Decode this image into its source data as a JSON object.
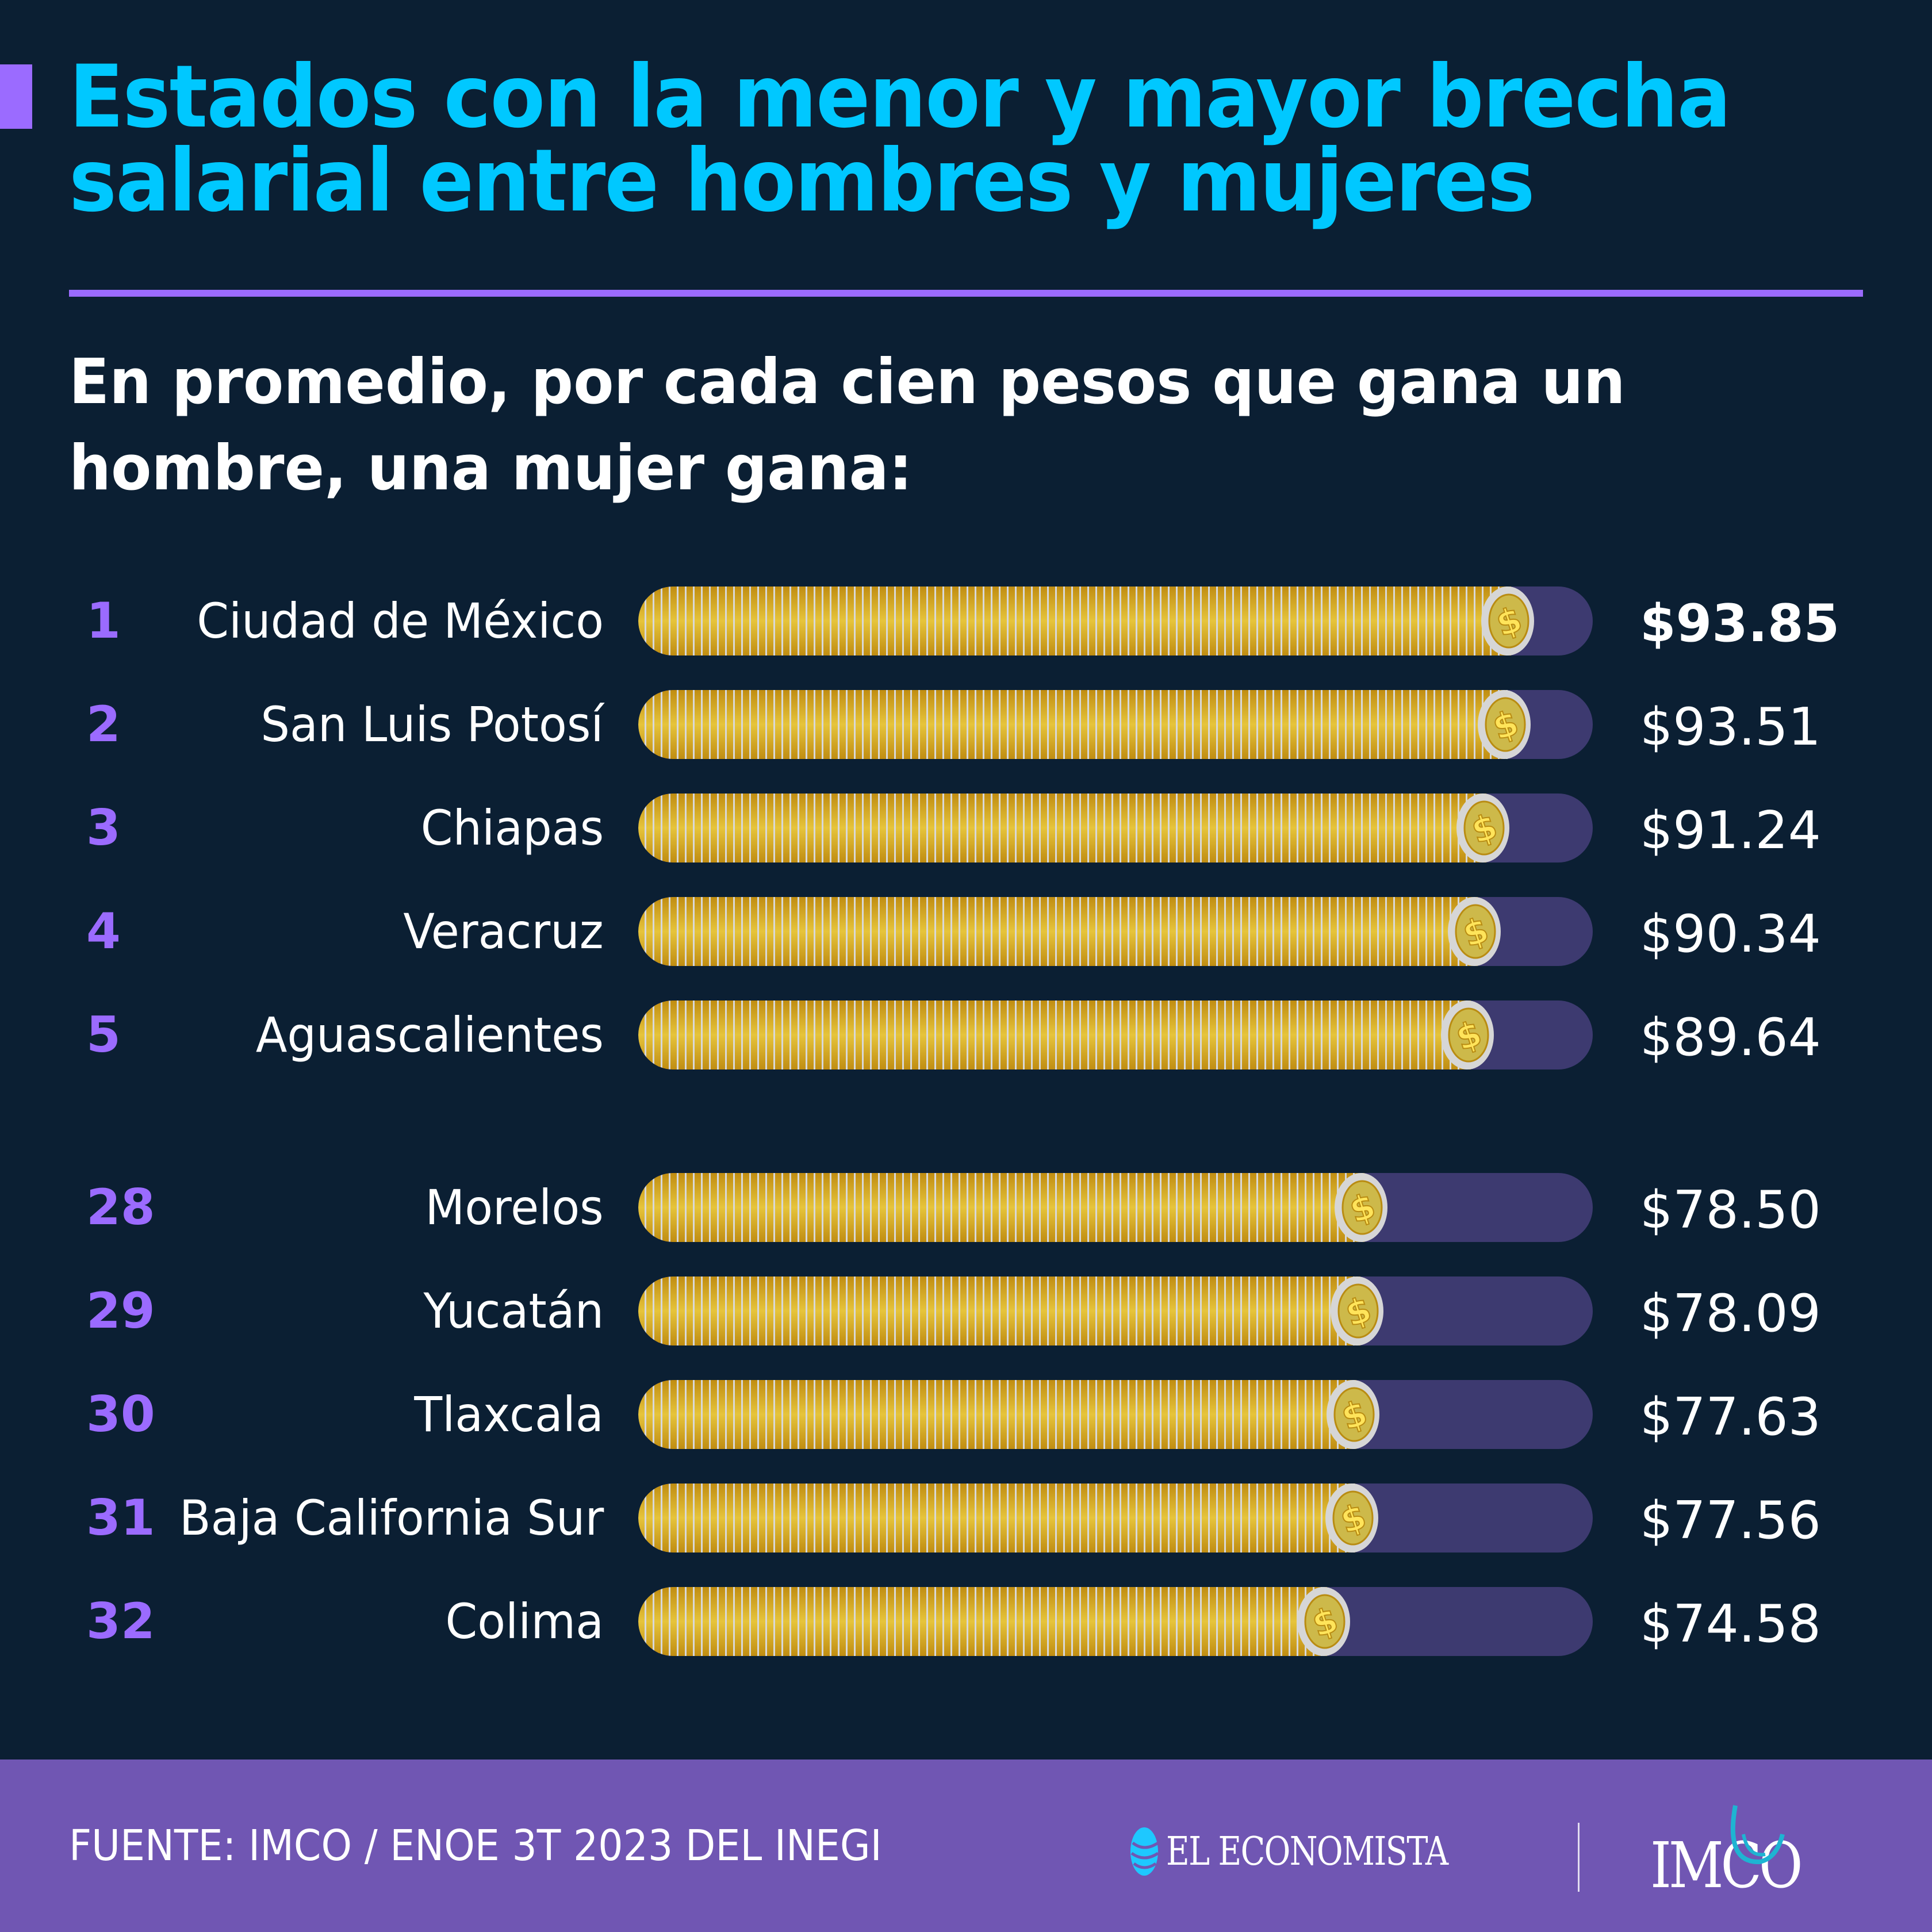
{
  "header": {
    "title": "Estados con la menor y mayor brecha salarial entre hombres y mujeres",
    "subtitle": "En promedio, por cada cien pesos que gana un hombre, una mujer gana:"
  },
  "colors": {
    "background": "#0b1f33",
    "title": "#00c8ff",
    "accent": "#9b6bff",
    "track": "#3d3a70",
    "coin_gold": "#e6c43b",
    "footer": "#7056b3"
  },
  "chart_data": {
    "type": "bar",
    "title": "Estados con la menor y mayor brecha salarial entre hombres y mujeres",
    "subtitle": "En promedio, por cada cien pesos que gana un hombre, una mujer gana:",
    "xlabel": "",
    "ylabel": "",
    "xlim": [
      0,
      100
    ],
    "orientation": "horizontal",
    "grid": false,
    "ranks": [
      "1",
      "2",
      "3",
      "4",
      "5",
      "28",
      "29",
      "30",
      "31",
      "32"
    ],
    "categories": [
      "Ciudad de México",
      "San Luis Potosí",
      "Chiapas",
      "Veracruz",
      "Aguascalientes",
      "Morelos",
      "Yucatán",
      "Tlaxcala",
      "Baja California Sur",
      "Colima"
    ],
    "values": [
      93.85,
      93.51,
      91.24,
      90.34,
      89.64,
      78.5,
      78.09,
      77.63,
      77.56,
      74.58
    ],
    "value_labels": [
      "$93.85",
      "$93.51",
      "$91.24",
      "$90.34",
      "$89.64",
      "$78.50",
      "$78.09",
      "$77.63",
      "$77.56",
      "$74.58"
    ]
  },
  "footer": {
    "source": "FUENTE: IMCO / ENOE 3T 2023 DEL INEGI",
    "logo_el_economista": "EL ECONOMISTA",
    "logo_imco": "IMCO"
  }
}
